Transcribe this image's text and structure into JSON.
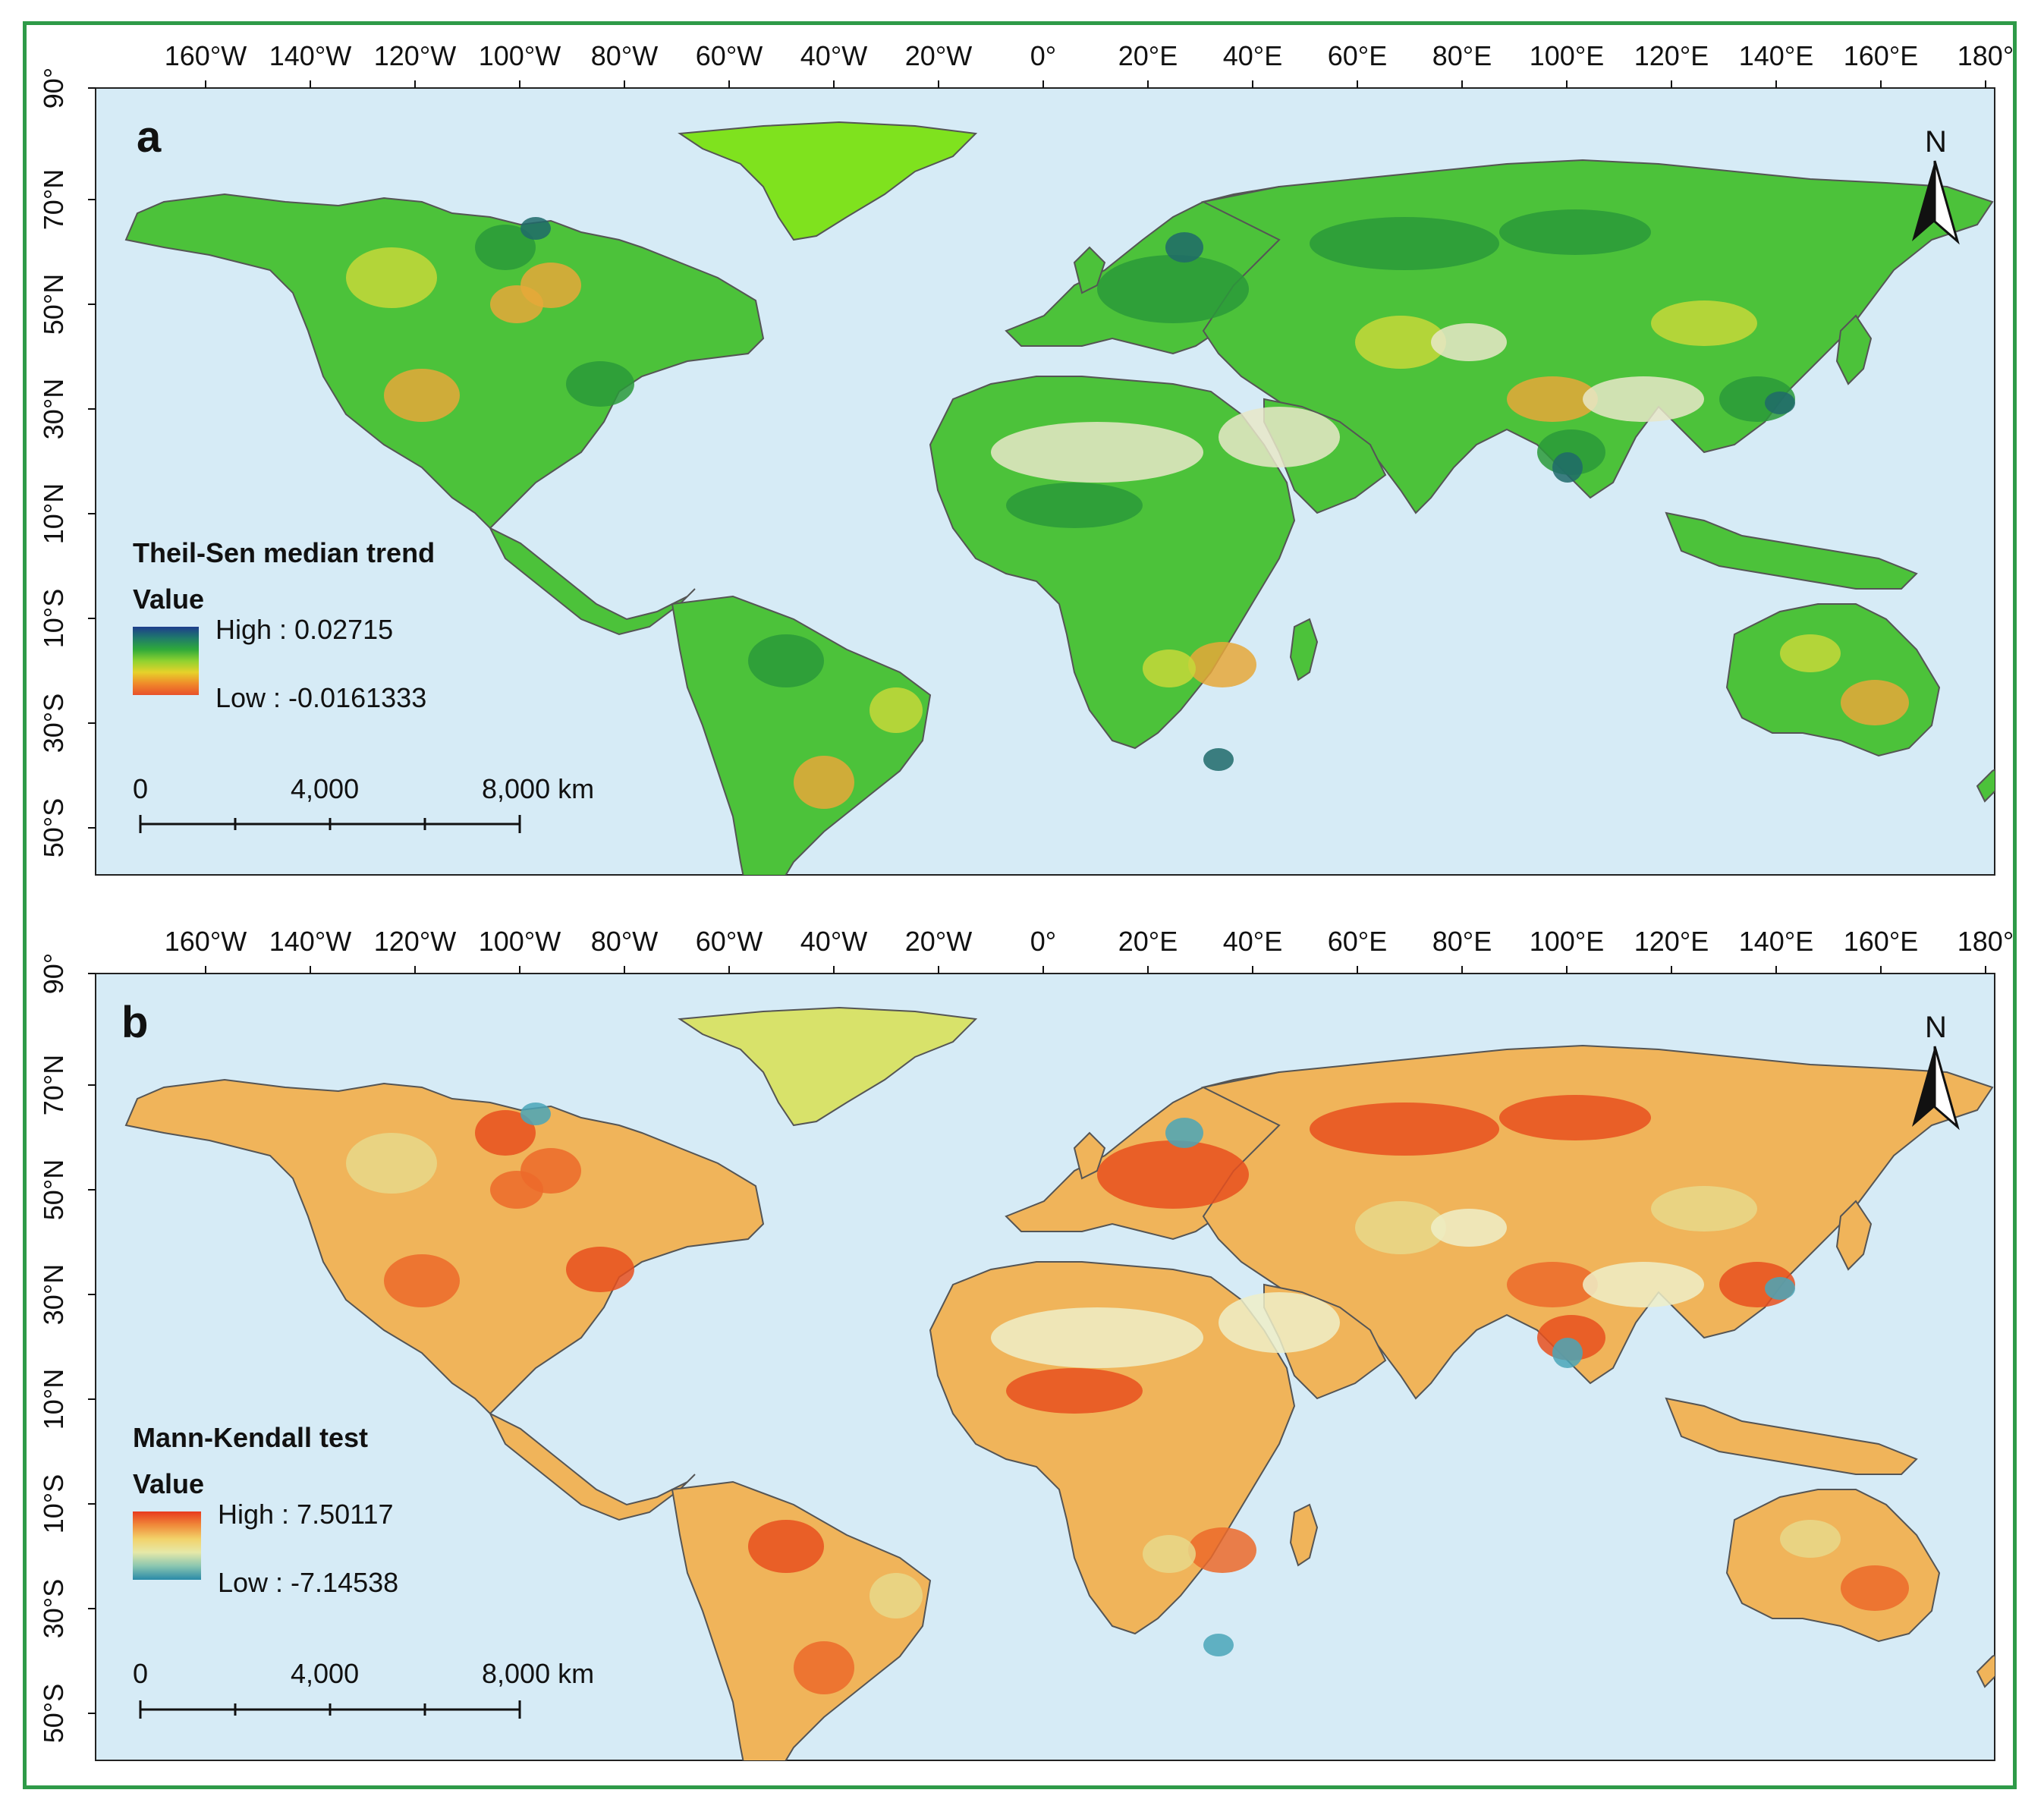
{
  "longitude_labels": [
    "160°W",
    "140°W",
    "120°W",
    "100°W",
    "80°W",
    "60°W",
    "40°W",
    "20°W",
    "0°",
    "20°E",
    "40°E",
    "60°E",
    "80°E",
    "100°E",
    "120°E",
    "140°E",
    "160°E",
    "180°"
  ],
  "latitude_labels": [
    "90°",
    "70°N",
    "50°N",
    "30°N",
    "10°N",
    "10°S",
    "30°S",
    "50°S"
  ],
  "north_arrow": "N",
  "scale_bar": {
    "labels": [
      "0",
      "4,000",
      "8,000 km"
    ]
  },
  "panels": [
    {
      "letter": "a",
      "legend_title": "Theil-Sen median trend",
      "legend_subtitle": "Value",
      "high_label": "High : 0.02715",
      "low_label": "Low : -0.0161333",
      "ramp_colors": [
        "#1d3d8c",
        "#1f7a6a",
        "#2faa3a",
        "#8fd230",
        "#e6d22a",
        "#f08a2a",
        "#e8502a"
      ],
      "land_colors": {
        "greenland": "#7fe21e",
        "dense": "#2a9a3a",
        "base": "#4cc23a",
        "dry": "#e8e8c8",
        "orange": "#e6a83a",
        "yellow": "#c6d83a",
        "blue": "#1f6a6a"
      }
    },
    {
      "letter": "b",
      "legend_title": "Mann-Kendall test",
      "legend_subtitle": "Value",
      "high_label": "High : 7.50117",
      "low_label": "Low : -7.14538",
      "ramp_colors": [
        "#e83a1e",
        "#f08a3a",
        "#f2d26a",
        "#e6e8a8",
        "#8ac6b0",
        "#2a8aa8"
      ],
      "land_colors": {
        "greenland": "#d8e26a",
        "dense": "#e8501e",
        "base": "#f0b45a",
        "dry": "#eeeec8",
        "orange": "#ec6a2a",
        "yellow": "#e8d88a",
        "blue": "#4aa6b8"
      }
    }
  ]
}
